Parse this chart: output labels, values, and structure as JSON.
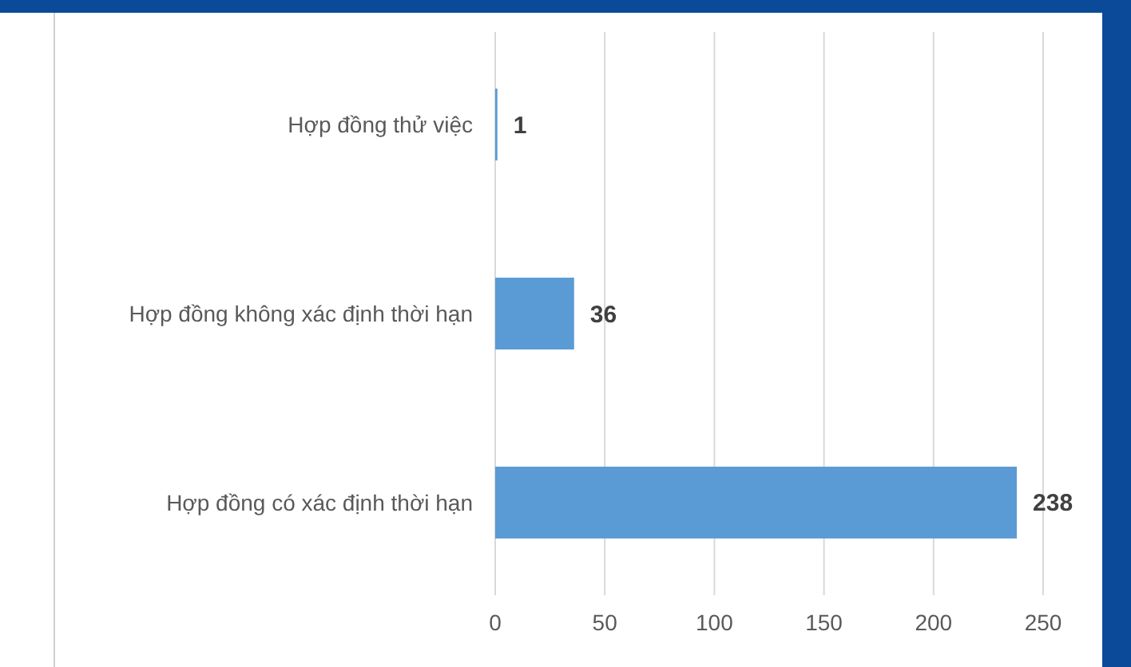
{
  "chart_data": {
    "type": "bar",
    "orientation": "horizontal",
    "categories": [
      "Hợp đồng thử việc",
      "Hợp đồng không xác định thời hạn",
      "Hợp đồng có xác định thời hạn"
    ],
    "values": [
      1,
      36,
      238
    ],
    "color": "#5b9bd5",
    "xlim": [
      0,
      250
    ],
    "xticks": [
      0,
      50,
      100,
      150,
      200,
      250
    ],
    "grid": "x",
    "data_labels": true
  }
}
